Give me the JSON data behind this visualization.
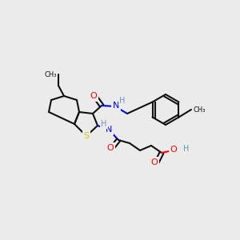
{
  "bg_color": "#ebebeb",
  "atom_colors": {
    "N": "#0000ff",
    "O": "#ff0000",
    "S": "#cccc00",
    "C": "#111111",
    "H": "#6699aa"
  },
  "bond_color": "#111111",
  "bond_width": 1.5
}
